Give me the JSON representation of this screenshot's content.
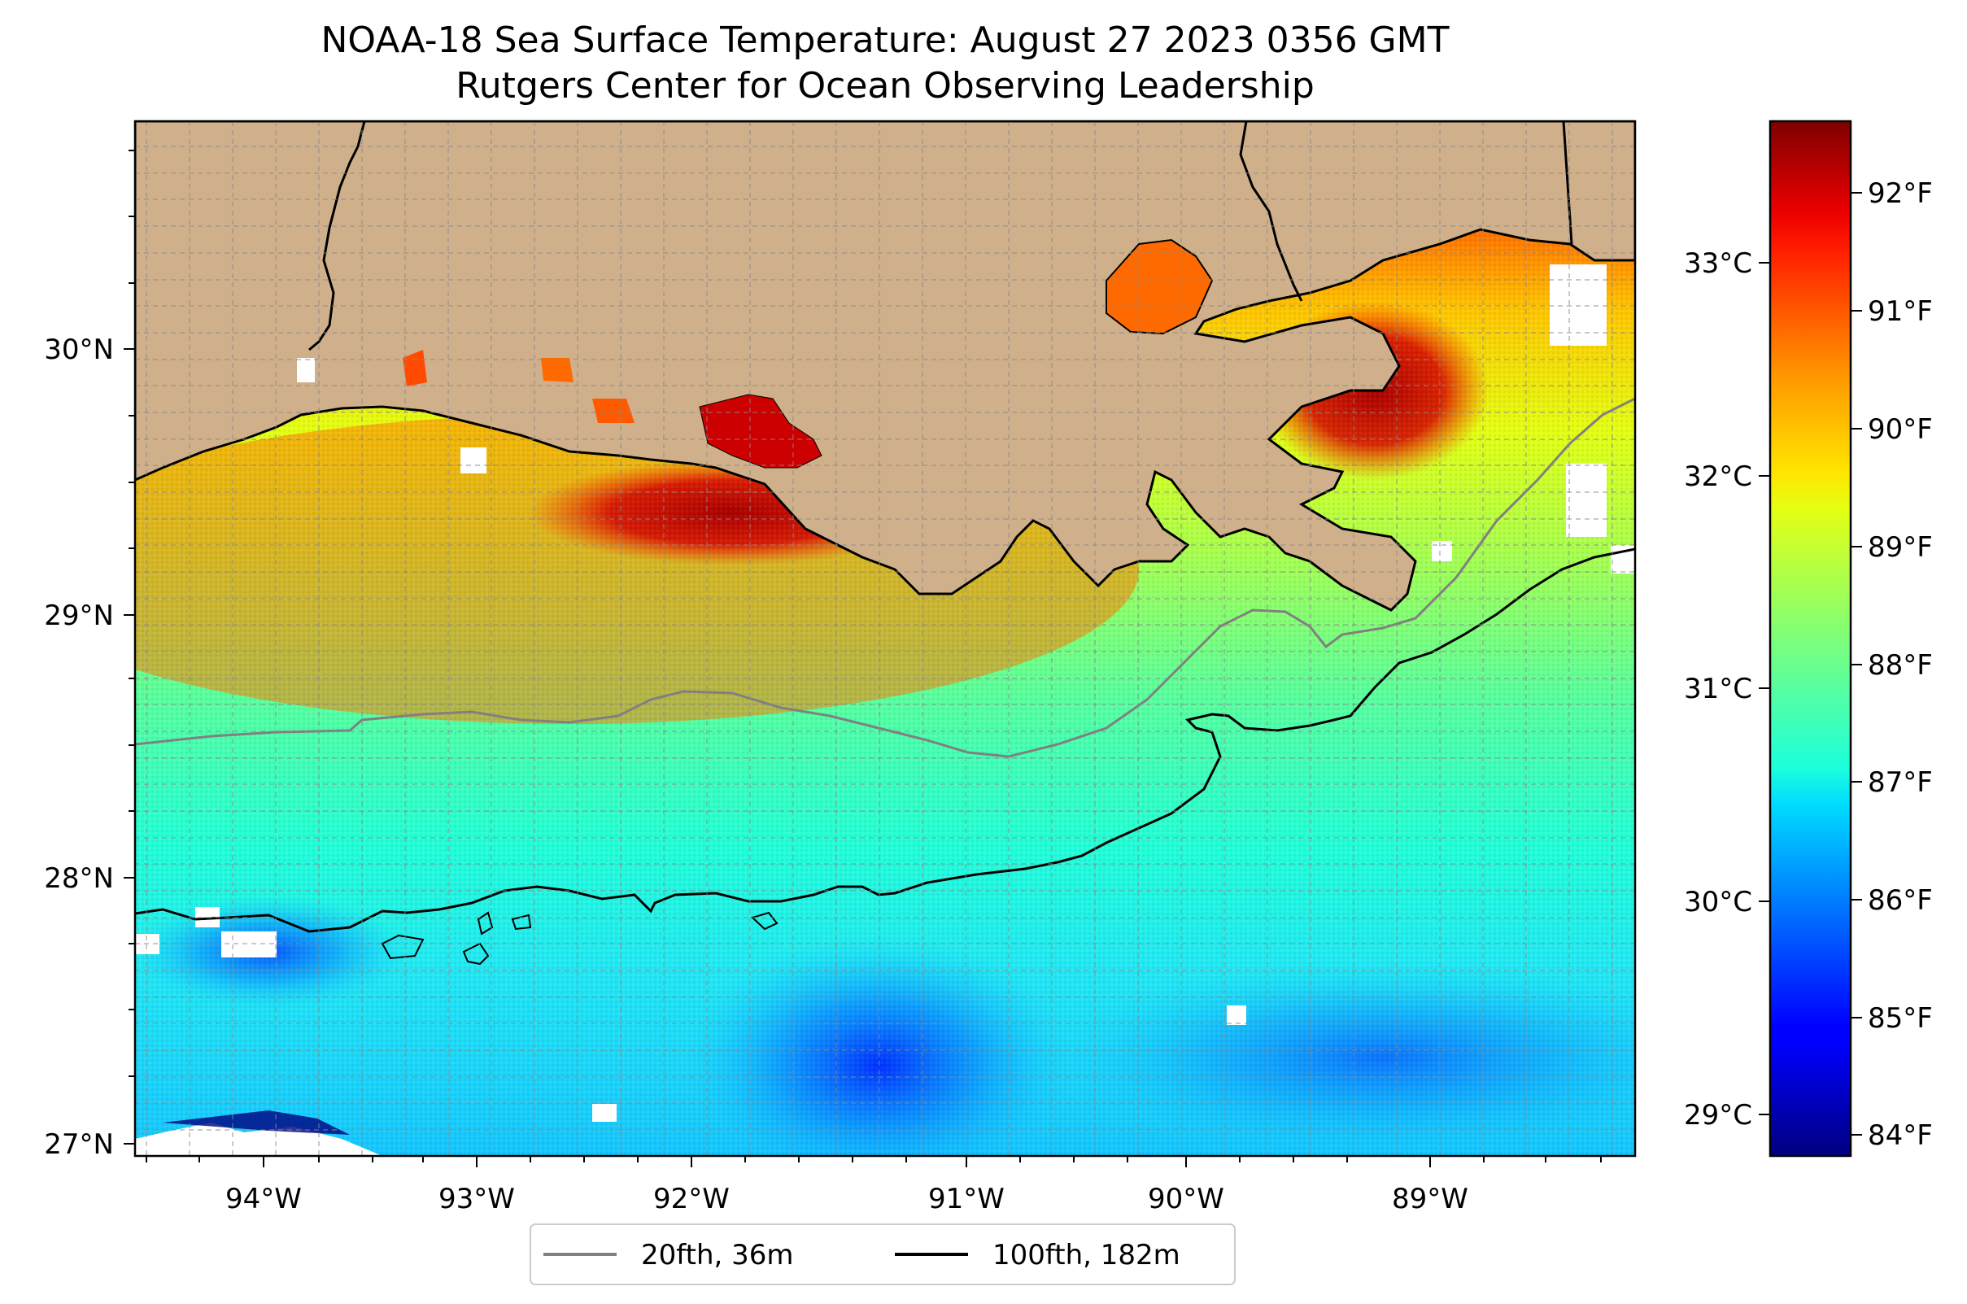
{
  "title_line1": "NOAA-18 Sea Surface Temperature: August 27 2023 0356 GMT",
  "title_line2": "Rutgers Center for Ocean Observing Leadership",
  "map": {
    "lon_range": [
      -94.55,
      -88.2
    ],
    "lat_range": [
      26.93,
      30.83
    ],
    "lon_ticks": [
      "94°W",
      "93°W",
      "92°W",
      "91°W",
      "90°W",
      "89°W"
    ],
    "lat_ticks": [
      "27°N",
      "28°N",
      "29°N",
      "30°N"
    ],
    "gridlines": true,
    "land_color": "#cfb08a",
    "colormap": "jet"
  },
  "colorbar": {
    "f_ticks": [
      "84°F",
      "85°F",
      "86°F",
      "87°F",
      "88°F",
      "89°F",
      "90°F",
      "91°F",
      "92°F"
    ],
    "c_ticks": [
      "29°C",
      "30°C",
      "31°C",
      "32°C",
      "33°C"
    ],
    "range_f": [
      83.8,
      92.6
    ]
  },
  "legend": {
    "placement": "bottom-center",
    "items": [
      {
        "label": "20fth, 36m",
        "color": "#808080"
      },
      {
        "label": "100fth, 182m",
        "color": "#000000"
      }
    ]
  }
}
